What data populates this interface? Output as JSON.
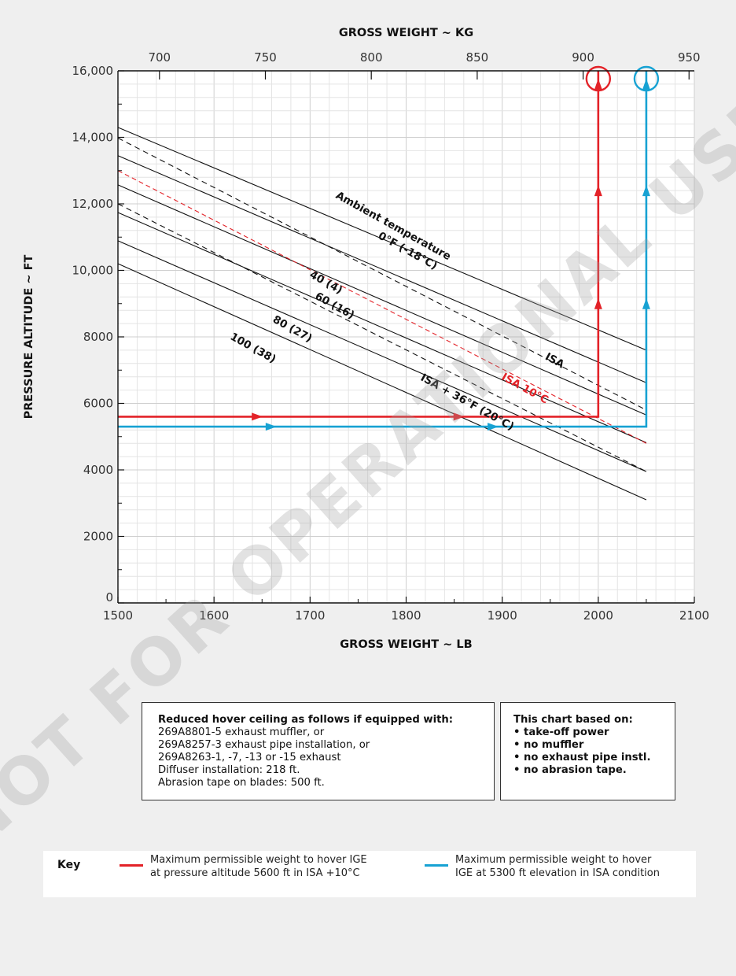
{
  "colors": {
    "red": "#e32228",
    "blue": "#17a2d3",
    "isa10": "#e32228",
    "line": "#111111"
  },
  "watermark": "NOT FOR OPERATIONAL USE",
  "chart_data": {
    "type": "line",
    "title": "",
    "xlabel": "GROSS WEIGHT ~ LB",
    "ylabel": "PRESSURE ALTITUDE ~ FT",
    "x2label": "GROSS WEIGHT ~ KG",
    "xlim": [
      1500,
      2100
    ],
    "ylim": [
      0,
      16000
    ],
    "x2lim": [
      680.4,
      952.5
    ],
    "xticks": [
      1500,
      1600,
      1700,
      1800,
      1900,
      2000,
      2100
    ],
    "xtick_labels": [
      "1500",
      "1600",
      "1700",
      "1800",
      "1900",
      "2000",
      "2100"
    ],
    "yticks": [
      0,
      2000,
      4000,
      6000,
      8000,
      10000,
      12000,
      14000,
      16000
    ],
    "ytick_labels": [
      "0",
      "2000",
      "4000",
      "6000",
      "8000",
      "10,000",
      "12,000",
      "14,000",
      "16,000"
    ],
    "x2ticks": [
      700,
      750,
      800,
      850,
      900,
      950
    ],
    "x2tick_labels": [
      "700",
      "750",
      "800",
      "850",
      "900",
      "950"
    ],
    "grid": true,
    "series": [
      {
        "name": "0°F (-18°C)",
        "style": "solid",
        "x": [
          1500,
          2050
        ],
        "y": [
          14300,
          7600
        ]
      },
      {
        "name": "40 (4)",
        "style": "solid",
        "x": [
          1500,
          2050
        ],
        "y": [
          13450,
          6620
        ]
      },
      {
        "name": "60 (16)",
        "style": "solid",
        "x": [
          1500,
          2050
        ],
        "y": [
          12570,
          5650
        ]
      },
      {
        "name": "80 (27)",
        "style": "solid",
        "x": [
          1500,
          2050
        ],
        "y": [
          11740,
          4820
        ]
      },
      {
        "name": "100 (38)",
        "style": "solid",
        "x": [
          1500,
          2050
        ],
        "y": [
          10890,
          3950
        ]
      },
      {
        "name": "",
        "style": "solid",
        "x": [
          1500,
          2050
        ],
        "y": [
          10200,
          3100
        ]
      },
      {
        "name": "ISA",
        "style": "dashed",
        "x": [
          1500,
          2050
        ],
        "y": [
          13980,
          5800
        ]
      },
      {
        "name": "ISA 10°C",
        "style": "dashed-red",
        "x": [
          1500,
          2050
        ],
        "y": [
          13000,
          4800
        ]
      },
      {
        "name": "ISA + 36°F (20°C)",
        "style": "dashed",
        "x": [
          1500,
          2050
        ],
        "y": [
          12000,
          3950
        ]
      }
    ],
    "annotations": [
      {
        "text": "Ambient temperature",
        "x": 1785,
        "y": 11250,
        "angle": 29
      },
      {
        "text": "0°F (-18°C)",
        "x": 1800,
        "y": 10500,
        "angle": 29
      },
      {
        "text": "40 (4)",
        "x": 1715,
        "y": 9550,
        "angle": 29
      },
      {
        "text": "60 (16)",
        "x": 1724,
        "y": 8850,
        "angle": 29
      },
      {
        "text": "80 (27)",
        "x": 1680,
        "y": 8150,
        "angle": 29
      },
      {
        "text": "100 (38)",
        "x": 1639,
        "y": 7580,
        "angle": 29
      },
      {
        "text": "ISA",
        "x": 1953,
        "y": 7200,
        "angle": 29
      },
      {
        "text": "ISA 10°C",
        "x": 1922,
        "y": 6360,
        "angle": 29
      },
      {
        "text": "ISA + 36°F (20°C)",
        "x": 1862,
        "y": 5950,
        "angle": 29
      }
    ],
    "paths": [
      {
        "name": "Maximum permissible weight to hover IGE at pressure altitude 5600 ft in ISA +10°C",
        "color": "red",
        "x": [
          1500,
          2000,
          2000
        ],
        "y": [
          5600,
          5600,
          16000
        ],
        "weight_kg_x": 907
      },
      {
        "name": "Maximum permissible weight to hover IGE at 5300 ft elevation in ISA condition",
        "color": "blue",
        "x": [
          1500,
          2050,
          2050
        ],
        "y": [
          5300,
          5300,
          16000
        ],
        "weight_kg_x": 930
      }
    ]
  },
  "notes": {
    "left": {
      "heading": "Reduced hover ceiling as follows if equipped with:",
      "lines": [
        "269A8801-5 exhaust muffler, or",
        "269A8257-3 exhaust pipe installation, or",
        "269A8263-1, -7, -13 or -15 exhaust",
        "Diffuser installation: 218 ft.",
        "Abrasion tape on blades: 500 ft."
      ]
    },
    "right": {
      "heading": "This chart based on:",
      "lines": [
        "• take-off power",
        "• no muffler",
        "• no exhaust pipe instl.",
        "• no abrasion tape."
      ]
    }
  },
  "key": {
    "title": "Key",
    "red_lines": [
      "Maximum permissible weight to hover IGE",
      "at pressure altitude 5600 ft in ISA +10°C"
    ],
    "blue_lines": [
      "Maximum permissible weight to hover",
      "IGE at 5300 ft elevation in ISA condition"
    ]
  }
}
